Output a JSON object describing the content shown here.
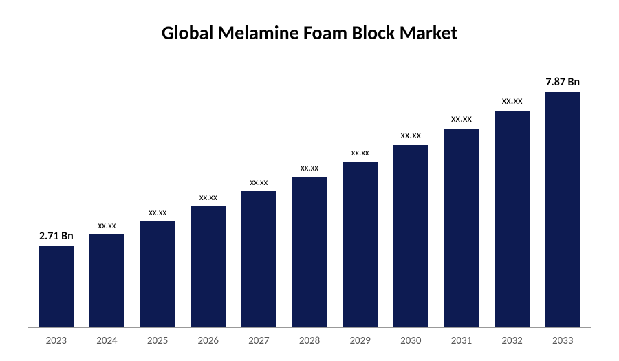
{
  "chart": {
    "type": "bar",
    "title": "Global Melamine Foam Block Market",
    "title_fontsize": 28,
    "title_color": "#000000",
    "background_color": "#ffffff",
    "bar_color": "#0d1b52",
    "axis_color": "#999999",
    "x_label_color": "#555555",
    "x_label_fontsize": 15,
    "bar_width_pct": 70,
    "categories": [
      "2023",
      "2024",
      "2025",
      "2026",
      "2027",
      "2028",
      "2029",
      "2030",
      "2031",
      "2032",
      "2033"
    ],
    "values": [
      2.71,
      3.1,
      3.55,
      4.05,
      4.55,
      5.05,
      5.55,
      6.1,
      6.65,
      7.25,
      7.87
    ],
    "max_value": 9.0,
    "value_labels": [
      "2.71 Bn",
      "xx.xx",
      "xx.xx",
      "xx.xx",
      "xx.xx",
      "xx.xx",
      "xx.xx",
      "xx.xx",
      "xx.xx",
      "xx.xx",
      "7.87 Bn"
    ],
    "value_label_sizes": [
      "large",
      "small",
      "small",
      "small",
      "small",
      "small",
      "small",
      "medium",
      "medium",
      "medium",
      "large"
    ]
  }
}
